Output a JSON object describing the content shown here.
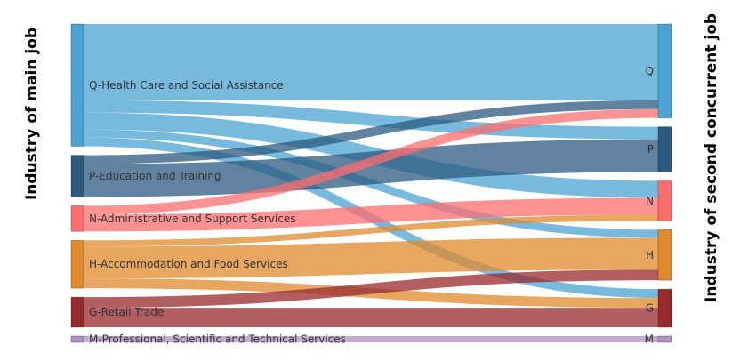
{
  "chart_data": {
    "type": "sankey",
    "left_axis_title": "Industry of main job",
    "right_axis_title": "Industry of second concurrent job",
    "source_nodes": [
      {
        "id": "Q",
        "label": "Q-Health Care and Social Assistance",
        "color": "#4ba3d3"
      },
      {
        "id": "P",
        "label": "P-Education and Training",
        "color": "#2c5a7f"
      },
      {
        "id": "N",
        "label": "N-Administrative and Support Services",
        "color": "#fd6d6d"
      },
      {
        "id": "H",
        "label": "H-Accommodation and Food Services",
        "color": "#e08a2c"
      },
      {
        "id": "G",
        "label": "G-Retail Trade",
        "color": "#9a2a2e"
      },
      {
        "id": "M",
        "label": "M-Professional, Scientific and Technical Services",
        "color": "#b18fc8"
      }
    ],
    "target_nodes": [
      {
        "id": "Q",
        "label": "Q",
        "color": "#4ba3d3"
      },
      {
        "id": "P",
        "label": "P",
        "color": "#2c5a7f"
      },
      {
        "id": "N",
        "label": "N",
        "color": "#fd6d6d"
      },
      {
        "id": "H",
        "label": "H",
        "color": "#e08a2c"
      },
      {
        "id": "G",
        "label": "G",
        "color": "#9a2a2e"
      },
      {
        "id": "M",
        "label": "M",
        "color": "#b18fc8"
      }
    ],
    "links": [
      {
        "source": "Q",
        "target": "Q",
        "value": 86
      },
      {
        "source": "Q",
        "target": "P",
        "value": 14
      },
      {
        "source": "Q",
        "target": "N",
        "value": 19
      },
      {
        "source": "Q",
        "target": "H",
        "value": 9
      },
      {
        "source": "Q",
        "target": "G",
        "value": 10
      },
      {
        "source": "P",
        "target": "Q",
        "value": 10
      },
      {
        "source": "P",
        "target": "P",
        "value": 37
      },
      {
        "source": "N",
        "target": "Q",
        "value": 10
      },
      {
        "source": "N",
        "target": "N",
        "value": 19
      },
      {
        "source": "H",
        "target": "N",
        "value": 7
      },
      {
        "source": "H",
        "target": "H",
        "value": 36
      },
      {
        "source": "H",
        "target": "G",
        "value": 11
      },
      {
        "source": "G",
        "target": "H",
        "value": 12
      },
      {
        "source": "G",
        "target": "G",
        "value": 22
      },
      {
        "source": "M",
        "target": "M",
        "value": 7
      }
    ]
  }
}
